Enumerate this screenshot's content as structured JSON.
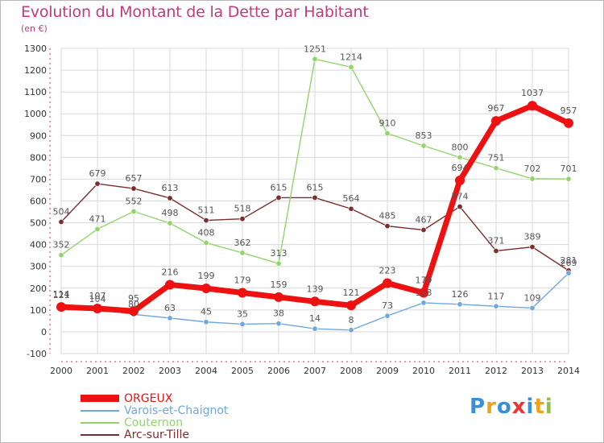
{
  "header": {
    "title": "Evolution du Montant de la Dette par Habitant",
    "subtitle": "(en €)"
  },
  "colors": {
    "axis_text": "#333333",
    "grid": "#d8d8d8",
    "label_text": "#555555"
  },
  "chart_data": {
    "type": "line",
    "title": "Evolution du Montant de la Dette par Habitant",
    "ylabel": "(en €)",
    "xlabel": "",
    "x": [
      "2000",
      "2001",
      "2002",
      "2003",
      "2004",
      "2005",
      "2006",
      "2007",
      "2008",
      "2009",
      "2010",
      "2011",
      "2012",
      "2013",
      "2014"
    ],
    "ylim": [
      -100,
      1300
    ],
    "yticks": [
      -100,
      0,
      100,
      200,
      300,
      400,
      500,
      600,
      700,
      800,
      900,
      1000,
      1100,
      1200,
      1300
    ],
    "grid": true,
    "legend_position": "bottom-left",
    "series": [
      {
        "name": "ORGEUX",
        "color": "#ee1111",
        "values": [
          114,
          107,
          95,
          216,
          199,
          179,
          159,
          139,
          121,
          223,
          179,
          694,
          967,
          1037,
          957
        ],
        "labels": [
          "114",
          "107",
          "95",
          "216",
          "199",
          "179",
          "159",
          "139",
          "121",
          "223",
          "179",
          "694",
          "967",
          "1037",
          "957"
        ]
      },
      {
        "name": "Varois-et-Chaignot",
        "color": "#6fa8dc",
        "values": [
          121,
          104,
          80,
          63,
          45,
          35,
          38,
          14,
          8,
          73,
          133,
          126,
          117,
          109,
          269
        ],
        "labels": [
          "121",
          "104",
          "80",
          "63",
          "45",
          "35",
          "38",
          "14",
          "8",
          "73",
          "133",
          "126",
          "117",
          "109",
          "269"
        ]
      },
      {
        "name": "Couternon",
        "color": "#93d46a",
        "values": [
          352,
          471,
          552,
          498,
          408,
          362,
          313,
          1251,
          1214,
          910,
          853,
          800,
          751,
          702,
          701
        ],
        "labels": [
          "352",
          "471",
          "552",
          "498",
          "408",
          "362",
          "313",
          "1251",
          "1214",
          "910",
          "853",
          "800",
          "751",
          "702",
          "701"
        ]
      },
      {
        "name": "Arc-sur-Tille",
        "color": "#7b2d2d",
        "values": [
          504,
          679,
          657,
          613,
          511,
          518,
          615,
          615,
          564,
          485,
          467,
          574,
          371,
          389,
          281
        ],
        "labels": [
          "504",
          "679",
          "657",
          "613",
          "511",
          "518",
          "615",
          "615",
          "564",
          "485",
          "467",
          "574",
          "371",
          "389",
          "281"
        ]
      }
    ]
  },
  "legend": {
    "items": [
      "ORGEUX",
      "Varois-et-Chaignot",
      "Couternon",
      "Arc-sur-Tille"
    ]
  },
  "logo": {
    "letters": [
      "P",
      "r",
      "o",
      "x",
      "i",
      "t",
      "i"
    ],
    "colors": [
      "#3b8fd6",
      "#f0a21a",
      "#3b8fd6",
      "#e33",
      "#3b8fd6",
      "#f0a21a",
      "#8bc43f"
    ]
  }
}
